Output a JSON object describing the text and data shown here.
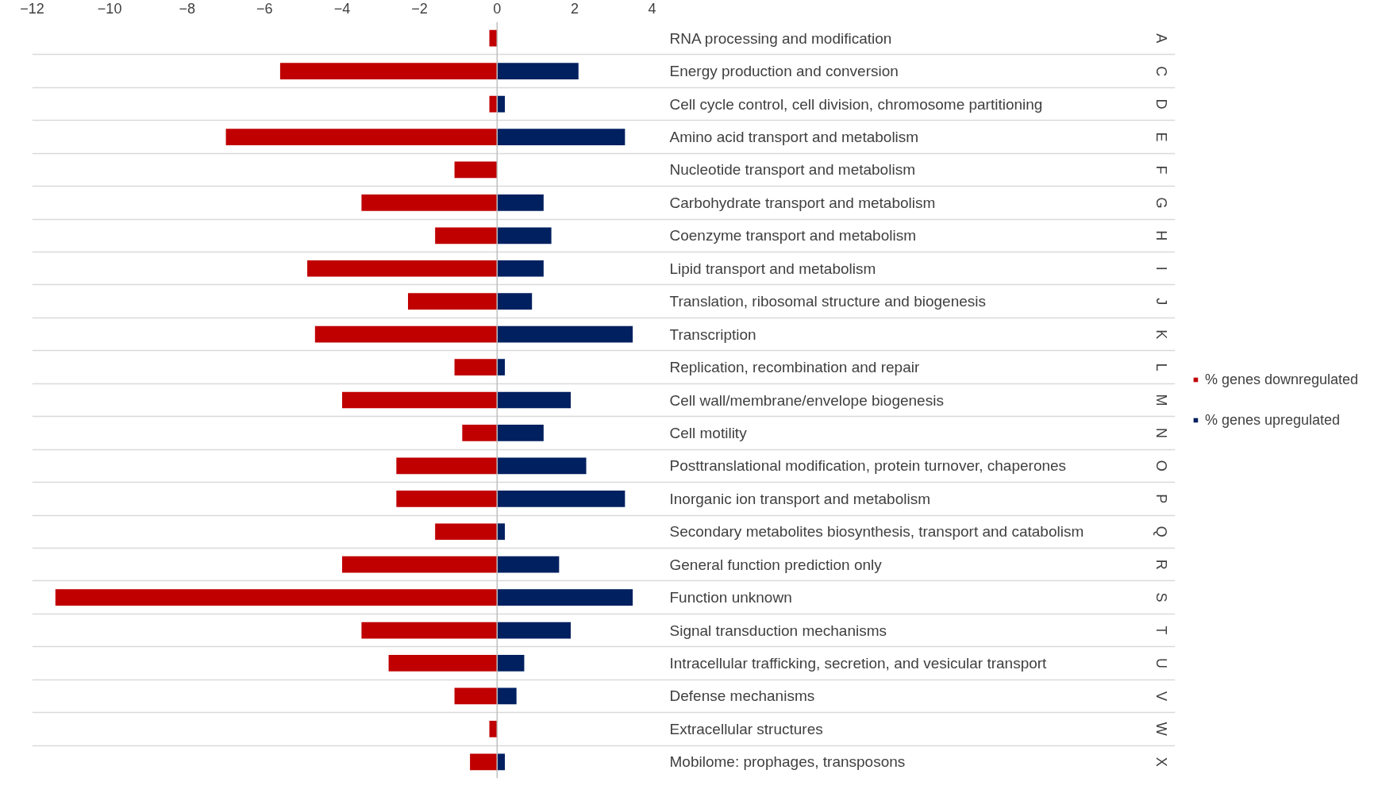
{
  "chart_data": {
    "type": "bar",
    "orientation": "horizontal",
    "categories": [
      "RNA processing and modification",
      "Energy production and conversion",
      "Cell cycle control, cell division, chromosome partitioning",
      "Amino acid transport and metabolism",
      "Nucleotide transport and metabolism",
      "Carbohydrate transport and metabolism",
      "Coenzyme transport and metabolism",
      "Lipid transport and metabolism",
      "Translation, ribosomal structure and biogenesis",
      "Transcription",
      "Replication, recombination and repair",
      "Cell wall/membrane/envelope biogenesis",
      "Cell motility",
      "Posttranslational modification, protein turnover, chaperones",
      "Inorganic ion transport and metabolism",
      "Secondary metabolites biosynthesis, transport and catabolism",
      "General function prediction only",
      "Function unknown",
      "Signal transduction mechanisms",
      "Intracellular trafficking, secretion, and vesicular transport",
      "Defense mechanisms",
      "Extracellular structures",
      "Mobilome: prophages, transposons"
    ],
    "series": [
      {
        "name": "% genes downregulated",
        "color": "#c00000",
        "values": [
          -0.2,
          -5.6,
          -0.2,
          -7.0,
          -1.1,
          -3.5,
          -1.6,
          -4.9,
          -2.3,
          -4.7,
          -1.1,
          -4.0,
          -0.9,
          -2.6,
          -2.6,
          -1.6,
          -4.0,
          -11.4,
          -3.5,
          -2.8,
          -1.1,
          -0.2,
          -0.7
        ]
      },
      {
        "name": "% genes upregulated",
        "color": "#002060",
        "values": [
          null,
          2.1,
          0.2,
          3.3,
          null,
          1.2,
          1.4,
          1.2,
          0.9,
          3.5,
          0.2,
          1.9,
          1.2,
          2.3,
          3.3,
          0.2,
          1.6,
          3.5,
          1.9,
          0.7,
          0.5,
          null,
          0.2
        ]
      }
    ],
    "annotations": [
      "A",
      "C",
      "D",
      "E",
      "F",
      "G",
      "H",
      "I",
      "J",
      "K",
      "L",
      "M",
      "N",
      "O",
      "P",
      "Q",
      "R",
      "S",
      "T",
      "U",
      "V",
      "W",
      "X"
    ],
    "stacked": true,
    "xlim": [
      -12,
      17.5
    ],
    "xticks": [
      -12,
      -10,
      -8,
      -6,
      -4,
      -2,
      0,
      2,
      4
    ],
    "grid": "y",
    "legend": "right"
  }
}
